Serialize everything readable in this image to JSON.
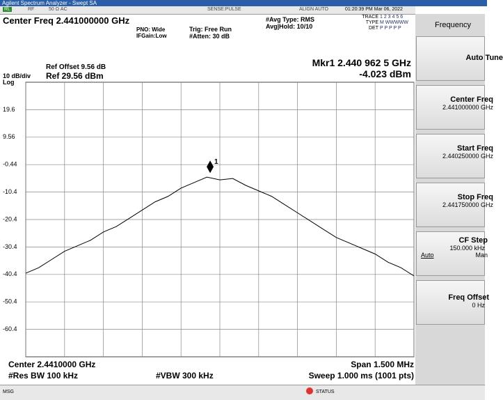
{
  "window": {
    "title": "Agilent Spectrum Analyzer - Swept SA"
  },
  "status": {
    "items": [
      "RL",
      "RF",
      "50 Ω  AC",
      "SENSE:PULSE",
      "ALIGN AUTO",
      "01:20:39 PM Mar 06, 2022"
    ],
    "trace": "TRACE",
    "trace_nums": "1 2 3 4 5 6",
    "type": "TYPE",
    "type_val": "M WWWWW",
    "det": "DET",
    "det_val": "P P P P P"
  },
  "header": {
    "center": "Center Freq 2.441000000 GHz",
    "pno": "PNO: Wide",
    "ifgain": "IFGain:Low",
    "trig": "Trig: Free Run",
    "atten": "#Atten: 30 dB",
    "avg_type": "#Avg Type: RMS",
    "avg_hold": "Avg|Hold: 10/10",
    "marker_freq": "Mkr1 2.440 962 5 GHz",
    "marker_level": "-4.023 dBm",
    "ref_offset": "Ref Offset 9.56 dB",
    "scale": "10 dB/div",
    "ref": "Ref 29.56 dBm",
    "log": "Log"
  },
  "plot": {
    "xlim": [
      2.44025,
      2.44175
    ],
    "xticks": [
      2.44025,
      2.4404,
      2.44055,
      2.4407,
      2.44085,
      2.441,
      2.44115,
      2.4413,
      2.44145,
      2.4416,
      2.44175
    ],
    "ylim": [
      -70.44,
      29.56
    ],
    "yticks": [
      {
        "value": 19.56,
        "label": "19.6"
      },
      9.56,
      -0.44,
      {
        "value": -10.44,
        "label": "-10.4"
      },
      {
        "value": -20.44,
        "label": "-20.4"
      },
      {
        "value": -30.44,
        "label": "-30.4"
      },
      {
        "value": -40.44,
        "label": "-40.4"
      },
      {
        "value": -50.44,
        "label": "-50.4"
      },
      {
        "value": -60.44,
        "label": "-60.4"
      }
    ],
    "trace": {
      "color": "#000000",
      "x": [
        2.44025,
        2.4403,
        2.44035,
        2.4404,
        2.44045,
        2.4405,
        2.44055,
        2.4406,
        2.44065,
        2.4407,
        2.44075,
        2.4408,
        2.44085,
        2.4409,
        2.44095,
        2.441,
        2.44105,
        2.4411,
        2.44115,
        2.4412,
        2.44125,
        2.4413,
        2.44135,
        2.4414,
        2.44145,
        2.4415,
        2.44155,
        2.4416,
        2.44165,
        2.4417,
        2.44175
      ],
      "values": [
        -40,
        -38,
        -35,
        -32,
        -30,
        -28,
        -25,
        -23,
        -20,
        -17,
        -14,
        -12,
        -9,
        -7,
        -5,
        -6,
        -5.5,
        -8,
        -10,
        -12,
        -15,
        -18,
        -21,
        -24,
        -27,
        -29,
        -31,
        -33,
        -36,
        -38,
        -41
      ]
    },
    "marker": {
      "x": 2.4409625,
      "value": -4.023,
      "label": "1"
    }
  },
  "footer": {
    "center": "Center 2.4410000 GHz",
    "span": "Span 1.500 MHz",
    "rbw": "#Res BW 100 kHz",
    "vbw": "#VBW 300 kHz",
    "sweep": "Sweep  1.000 ms (1001 pts)"
  },
  "softkeys": {
    "menu": "Frequency",
    "auto_tune": "Auto Tune",
    "center": "Center Freq",
    "center_val": "2.441000000 GHz",
    "start": "Start Freq",
    "start_val": "2.440250000 GHz",
    "stop": "Stop Freq",
    "stop_val": "2.441750000 GHz",
    "cf_step": "CF Step",
    "cf_step_val": "150.000 kHz",
    "auto": "Auto",
    "man": "Man",
    "offset": "Freq Offset",
    "offset_val": "0 Hz"
  },
  "bottom": {
    "msg": "MSG",
    "status": "STATUS"
  }
}
